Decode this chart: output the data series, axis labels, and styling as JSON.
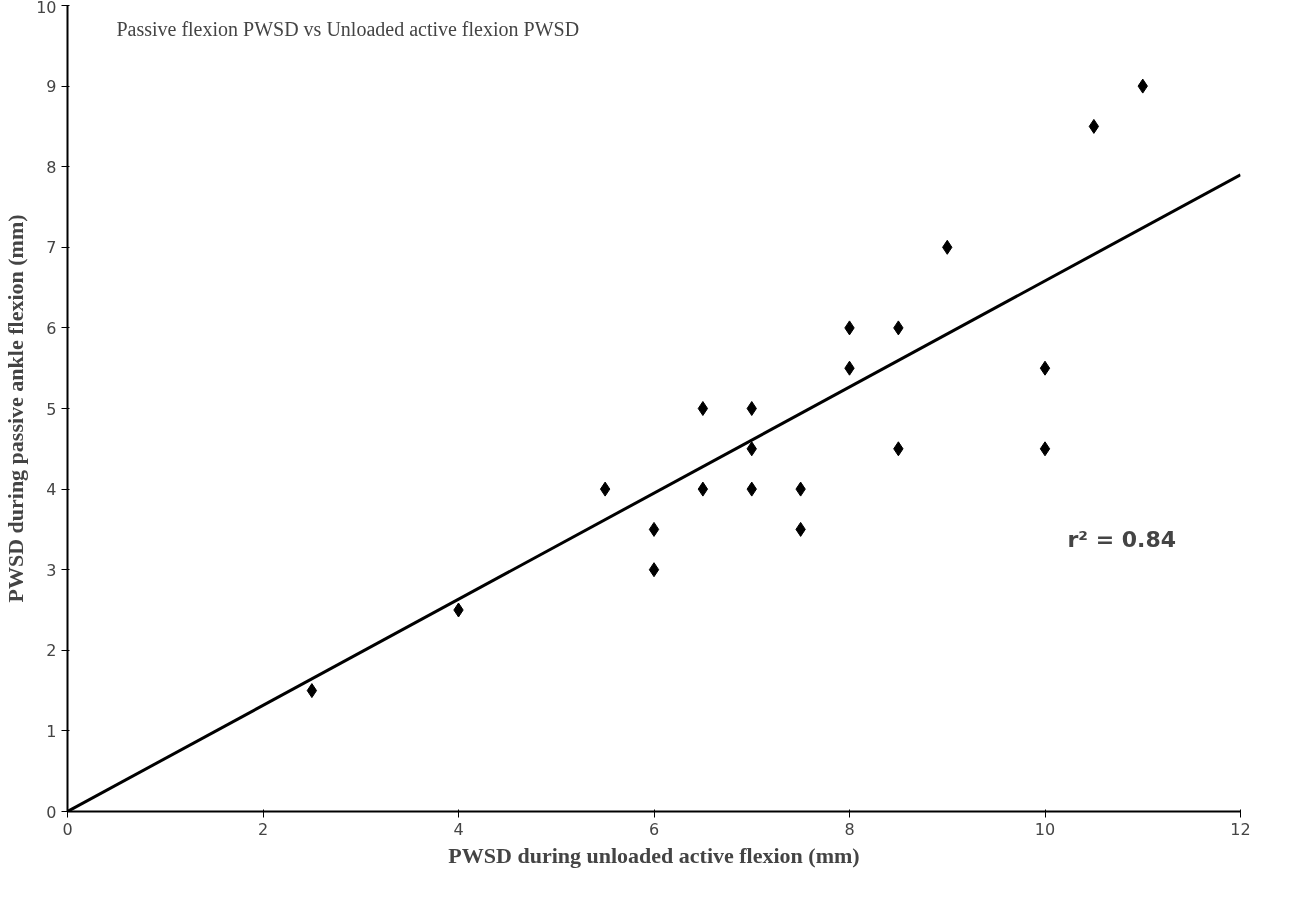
{
  "chart_data": {
    "type": "scatter",
    "title": "Passive flexion PWSD vs Unloaded active flexion PWSD",
    "xlabel": "PWSD during unloaded active flexion (mm)",
    "ylabel": "PWSD during passive ankle flexion (mm)",
    "annotations": [
      "r² = 0.84"
    ],
    "x": [
      2.5,
      4,
      5.5,
      6,
      6,
      6.5,
      6.5,
      7,
      7,
      7,
      7.5,
      7.5,
      8,
      8,
      8.5,
      8.5,
      9,
      10,
      10,
      10.5,
      11
    ],
    "series": [
      {
        "color": "#000000",
        "values": [
          1.5,
          2.5,
          4,
          3.5,
          3,
          5,
          4,
          5,
          4.5,
          4,
          4,
          3.5,
          6,
          5.5,
          6,
          4.5,
          7,
          5.5,
          4.5,
          8.5,
          9
        ]
      },
      {
        "type": "line",
        "color": "#000000",
        "marker": "none",
        "x": [
          0,
          12
        ],
        "values": [
          0,
          7.9
        ]
      }
    ],
    "xlim": [
      0,
      12
    ],
    "ylim": [
      0,
      10
    ],
    "xticks": [
      0,
      2,
      4,
      6,
      8,
      10,
      12
    ],
    "yticks": [
      0,
      1,
      2,
      3,
      4,
      5,
      6,
      7,
      8,
      9,
      10
    ],
    "grid": false,
    "marker": "diamond"
  }
}
